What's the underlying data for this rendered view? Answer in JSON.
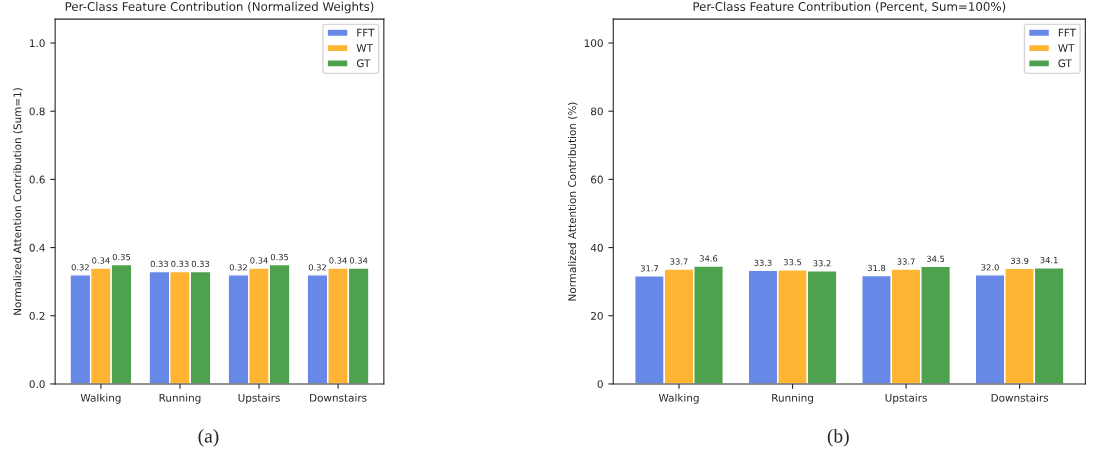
{
  "chart_data": [
    {
      "type": "bar",
      "title": "Per-Class Feature Contribution (Normalized Weights)",
      "ylabel": "Normalized Attention Contribution (Sum=1)",
      "categories": [
        "Walking",
        "Running",
        "Upstairs",
        "Downstairs"
      ],
      "series": [
        {
          "name": "FFT",
          "color": "#6788e6",
          "values": [
            0.32,
            0.33,
            0.32,
            0.32
          ]
        },
        {
          "name": "WT",
          "color": "#ffb533",
          "values": [
            0.34,
            0.33,
            0.34,
            0.34
          ]
        },
        {
          "name": "GT",
          "color": "#4ea24e",
          "values": [
            0.35,
            0.33,
            0.35,
            0.34
          ]
        }
      ],
      "ylim": [
        0,
        1.07
      ],
      "yticks": [
        {
          "value": 0,
          "label": "0.0"
        },
        0.2,
        0.4,
        0.6,
        0.8,
        {
          "value": 1,
          "label": "1.0"
        }
      ],
      "data_labels": true,
      "legend": "top right",
      "grid": false,
      "annotations": [
        "(a)"
      ]
    },
    {
      "type": "bar",
      "title": "Per-Class Feature Contribution (Percent, Sum=100%)",
      "ylabel": "Normalized Attention Contribution (%)",
      "categories": [
        "Walking",
        "Running",
        "Upstairs",
        "Downstairs"
      ],
      "series": [
        {
          "name": "FFT",
          "color": "#6788e6",
          "values": [
            31.7,
            33.3,
            31.8,
            32.0
          ],
          "value_labels": [
            "31.7",
            "33.3",
            "31.8",
            "32.0"
          ]
        },
        {
          "name": "WT",
          "color": "#ffb533",
          "values": [
            33.7,
            33.5,
            33.7,
            33.9
          ]
        },
        {
          "name": "GT",
          "color": "#4ea24e",
          "values": [
            34.6,
            33.2,
            34.5,
            34.1
          ]
        }
      ],
      "ylim": [
        0,
        107
      ],
      "yticks": [
        0,
        20,
        40,
        60,
        80,
        100
      ],
      "data_labels": true,
      "legend": "top right",
      "grid": false,
      "annotations": [
        "(b)"
      ]
    }
  ]
}
